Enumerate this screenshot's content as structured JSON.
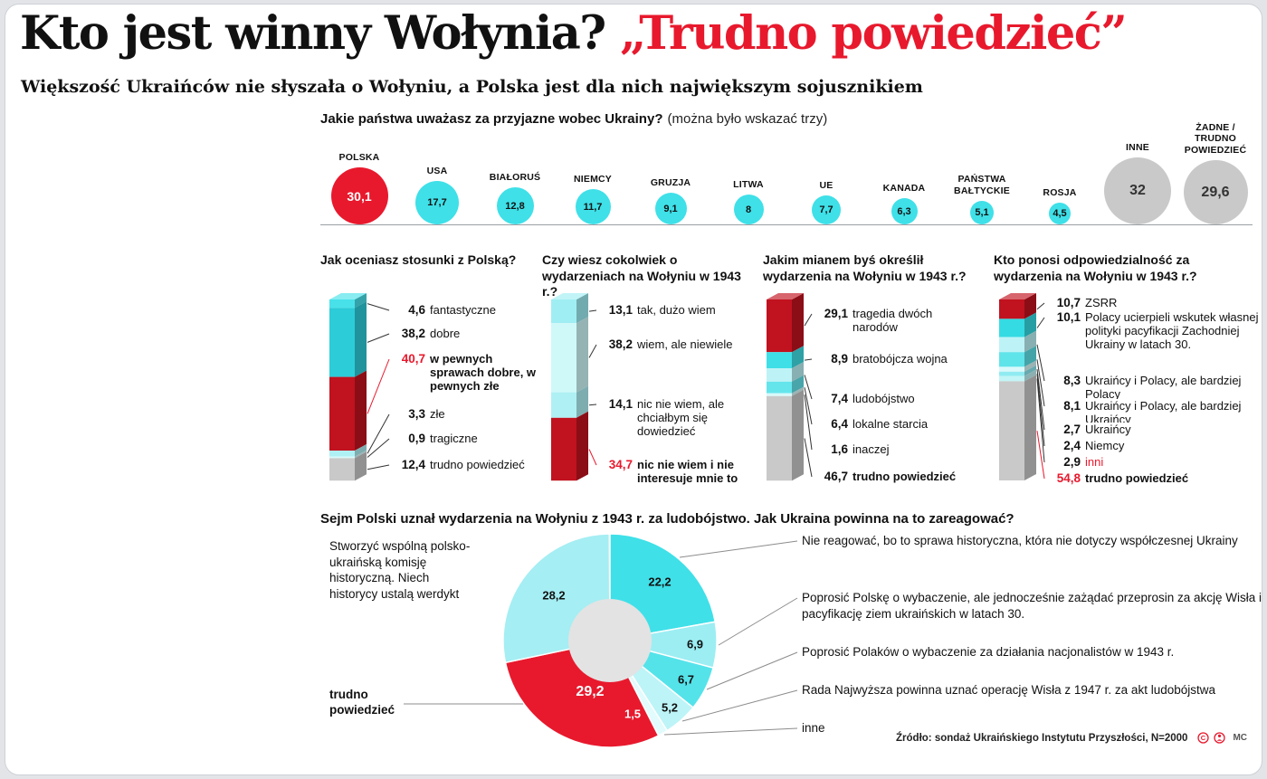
{
  "page": {
    "title_black": "Kto jest winny Wołynia?",
    "title_red": "„Trudno powiedzieć”",
    "subtitle": "Większość Ukraińców nie słyszała o Wołyniu, a Polska jest dla nich największym sojusznikiem",
    "source": "Źródło: sondaż Ukraińskiego Instytutu Przyszłości, N=2000",
    "credit": "MC"
  },
  "colors": {
    "red": "#e8192d",
    "cyan": "#3fe0e8",
    "gray": "#c9c9c9"
  },
  "chart_data": [
    {
      "type": "bubble",
      "title": "Jakie państwa uważasz za przyjazne wobec Ukrainy?",
      "note": "(można było wskazać trzy)",
      "items": [
        {
          "label": "POLSKA",
          "value": 30.1,
          "display": "30,1",
          "color": "#e8192d",
          "text_color": "#ffffff"
        },
        {
          "label": "USA",
          "value": 17.7,
          "display": "17,7",
          "color": "#3fe0e8",
          "text_color": "#111111"
        },
        {
          "label": "BIAŁORUŚ",
          "value": 12.8,
          "display": "12,8",
          "color": "#3fe0e8",
          "text_color": "#111111"
        },
        {
          "label": "NIEMCY",
          "value": 11.7,
          "display": "11,7",
          "color": "#3fe0e8",
          "text_color": "#111111"
        },
        {
          "label": "GRUZJA",
          "value": 9.1,
          "display": "9,1",
          "color": "#3fe0e8",
          "text_color": "#111111"
        },
        {
          "label": "LITWA",
          "value": 8,
          "display": "8",
          "color": "#3fe0e8",
          "text_color": "#111111"
        },
        {
          "label": "UE",
          "value": 7.7,
          "display": "7,7",
          "color": "#3fe0e8",
          "text_color": "#111111"
        },
        {
          "label": "KANADA",
          "value": 6.3,
          "display": "6,3",
          "color": "#3fe0e8",
          "text_color": "#111111"
        },
        {
          "label": "PAŃSTWA BAŁTYCKIE",
          "value": 5.1,
          "display": "5,1",
          "color": "#3fe0e8",
          "text_color": "#111111"
        },
        {
          "label": "ROSJA",
          "value": 4.5,
          "display": "4,5",
          "color": "#3fe0e8",
          "text_color": "#111111"
        },
        {
          "label": "INNE",
          "value": 32,
          "display": "32",
          "color": "#c9c9c9",
          "text_color": "#333333"
        },
        {
          "label": "ŻADNE / TRUDNO POWIEDZIEĆ",
          "value": 29.6,
          "display": "29,6",
          "color": "#c9c9c9",
          "text_color": "#333333"
        }
      ]
    },
    {
      "type": "bar",
      "title": "Jak oceniasz stosunki z Polską?",
      "segments": [
        {
          "value": 4.6,
          "display": "4,6",
          "label": "fantastyczne",
          "color": "#48e1e9"
        },
        {
          "value": 38.2,
          "display": "38,2",
          "label": "dobre",
          "color": "#2cccd8"
        },
        {
          "value": 40.7,
          "display": "40,7",
          "label": "w pewnych sprawach dobre, w pewnych złe",
          "color": "#c1121f",
          "value_color": "#e8192d",
          "label_bold": true
        },
        {
          "value": 3.3,
          "display": "3,3",
          "label": "złe",
          "color": "#aff0f4"
        },
        {
          "value": 0.9,
          "display": "0,9",
          "label": "tragiczne",
          "color": "#d9f9fa"
        },
        {
          "value": 12.4,
          "display": "12,4",
          "label": "trudno powiedzieć",
          "color": "#c9c9c9"
        }
      ]
    },
    {
      "type": "bar",
      "title": "Czy wiesz cokolwiek o wydarzeniach na Wołyniu w 1943 r.?",
      "segments": [
        {
          "value": 13.1,
          "display": "13,1",
          "label": "tak, dużo wiem",
          "color": "#9feef3"
        },
        {
          "value": 38.2,
          "display": "38,2",
          "label": "wiem, ale niewiele",
          "color": "#cff8f9"
        },
        {
          "value": 14.1,
          "display": "14,1",
          "label": "nic nie wiem, ale chciałbym się dowiedzieć",
          "color": "#aff0f4"
        },
        {
          "value": 34.7,
          "display": "34,7",
          "label": "nic nie wiem i nie interesuje mnie to",
          "color": "#c1121f",
          "value_color": "#e8192d",
          "label_bold": true
        }
      ]
    },
    {
      "type": "bar",
      "title": "Jakim mianem byś określił wydarzenia na Wołyniu w 1943 r.?",
      "segments": [
        {
          "value": 29.1,
          "display": "29,1",
          "label": "tragedia dwóch narodów",
          "color": "#c1121f"
        },
        {
          "value": 8.9,
          "display": "8,9",
          "label": "bratobójcza wojna",
          "color": "#3fdfe7"
        },
        {
          "value": 7.4,
          "display": "7,4",
          "label": "ludobójstwo",
          "color": "#bdf3f6"
        },
        {
          "value": 6.4,
          "display": "6,4",
          "label": "lokalne starcia",
          "color": "#64e5ec"
        },
        {
          "value": 1.6,
          "display": "1,6",
          "label": "inaczej",
          "color": "#d9f9fa"
        },
        {
          "value": 46.7,
          "display": "46,7",
          "label": "trudno powiedzieć",
          "color": "#c9c9c9",
          "label_bold": true
        }
      ]
    },
    {
      "type": "bar",
      "title": "Kto ponosi odpowiedzialność za wydarzenia na Wołyniu w 1943 r.?",
      "segments": [
        {
          "value": 10.7,
          "display": "10,7",
          "label": "ZSRR",
          "color": "#c1121f"
        },
        {
          "value": 10.1,
          "display": "10,1",
          "label": "Polacy ucierpieli wskutek własnej polityki pacyfikacji Zachodniej Ukrainy w latach 30.",
          "color": "#35dbe3"
        },
        {
          "value": 8.3,
          "display": "8,3",
          "label": "Ukraińcy i Polacy, ale bardziej Polacy",
          "color": "#bdf3f6"
        },
        {
          "value": 8.1,
          "display": "8,1",
          "label": "Ukraińcy i Polacy, ale bardziej Ukraińcy",
          "color": "#5fe4ea"
        },
        {
          "value": 2.7,
          "display": "2,7",
          "label": "Ukraińcy",
          "color": "#d9f9fa"
        },
        {
          "value": 2.4,
          "display": "2,4",
          "label": "Niemcy",
          "color": "#8febf1"
        },
        {
          "value": 2.9,
          "display": "2,9",
          "label": "inni",
          "color": "#c2f5f7",
          "label_color": "#e8192d"
        },
        {
          "value": 54.8,
          "display": "54,8",
          "label": "trudno powiedzieć",
          "color": "#c9c9c9",
          "value_color": "#e8192d",
          "label_bold": true
        }
      ]
    },
    {
      "type": "pie",
      "title": "Sejm Polski uznał wydarzenia na Wołyniu z 1943 r. za ludobójstwo. Jak Ukraina powinna na to zareagować?",
      "hole_color": "#e3e3e3",
      "slices": [
        {
          "value": 22.2,
          "display": "22,2",
          "label": "Nie reagować, bo to sprawa historyczna, która nie dotyczy współczesnej Ukrainy",
          "color": "#3fe0e8"
        },
        {
          "value": 6.9,
          "display": "6,9",
          "label": "Poprosić Polskę o wybaczenie, ale jednocześnie zażądać przeprosin za akcję Wisła i pacyfikację ziem ukraińskich w latach 30.",
          "color": "#9ceef3"
        },
        {
          "value": 6.7,
          "display": "6,7",
          "label": "Poprosić Polaków o wybaczenie za działania nacjonalistów w 1943 r.",
          "color": "#55e3ea"
        },
        {
          "value": 5.2,
          "display": "5,2",
          "label": "Rada Najwyższa powinna uznać operację Wisła z 1947 r. za akt ludobójstwa",
          "color": "#bdf4f7"
        },
        {
          "value": 1.5,
          "display": "1,5",
          "label": "inne",
          "color": "#e2fbfc"
        },
        {
          "value": 29.2,
          "display": "29,2",
          "label": "trudno powiedzieć",
          "color": "#e8192d"
        },
        {
          "value": 28.2,
          "display": "28,2",
          "label": "Stworzyć wspólną polsko-ukraińską komisję historyczną. Niech historycy ustalą werdykt",
          "color": "#a5eef3"
        }
      ]
    }
  ]
}
